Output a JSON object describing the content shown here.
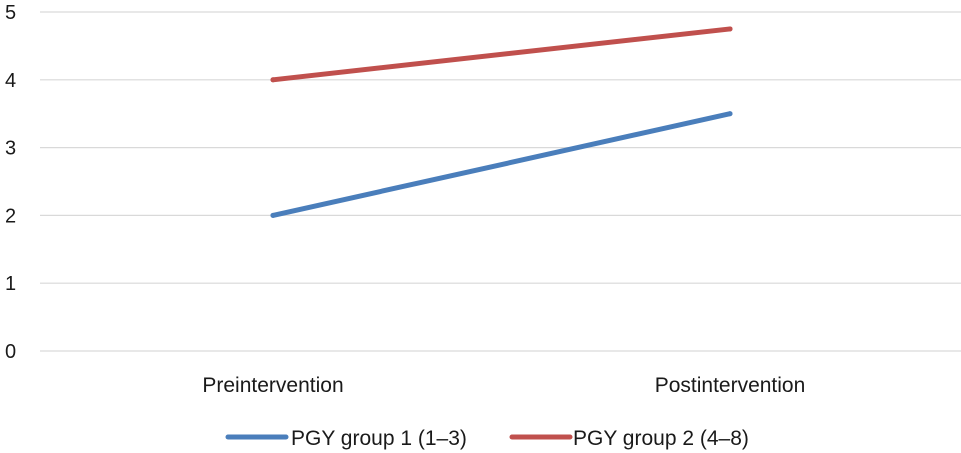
{
  "chart_data": {
    "type": "line",
    "categories": [
      "Preintervention",
      "Postintervention"
    ],
    "series": [
      {
        "name": "PGY group 1 (1–3)",
        "values": [
          2,
          3.5
        ],
        "color": "#4a7ebb"
      },
      {
        "name": "PGY group 2 (4–8)",
        "values": [
          4,
          4.75
        ],
        "color": "#c0504d"
      }
    ],
    "ylim": [
      0,
      5
    ],
    "yticks": [
      0,
      1,
      2,
      3,
      4,
      5
    ],
    "grid": true,
    "legend": "bottom"
  }
}
